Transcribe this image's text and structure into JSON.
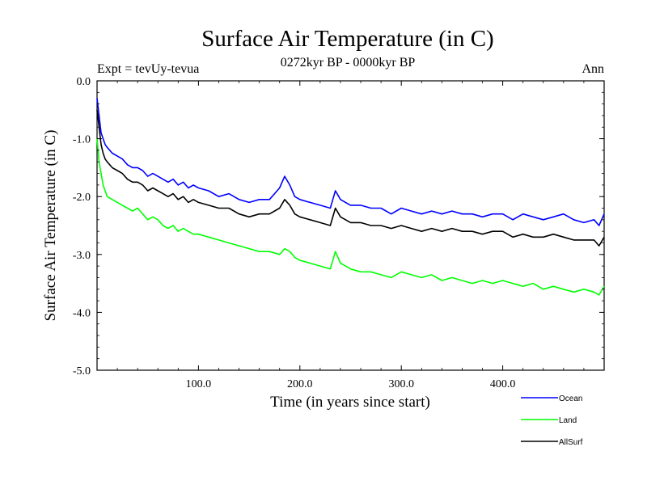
{
  "chart_data": {
    "type": "line",
    "title": "Surface Air Temperature (in C)",
    "subtitle": "0272kyr BP - 0000kyr BP",
    "left_label": "Expt = tevUy-tevua",
    "right_label": "Ann",
    "xlabel": "Time (in years since start)",
    "ylabel": "Surface Air Temperature (in C)",
    "xlim": [
      0,
      500
    ],
    "ylim": [
      -5.0,
      0.0
    ],
    "xticks": [
      100,
      200,
      300,
      400
    ],
    "xtick_labels": [
      "100.0",
      "200.0",
      "300.0",
      "400.0"
    ],
    "yticks": [
      0.0,
      -1.0,
      -2.0,
      -3.0,
      -4.0,
      -5.0
    ],
    "ytick_labels": [
      "0.0",
      "-1.0",
      "-2.0",
      "-3.0",
      "-4.0",
      "-5.0"
    ],
    "grid": false,
    "legend_position": "bottom-right, below plot",
    "series": [
      {
        "name": "Ocean",
        "color": "#0000ff",
        "x": [
          0,
          2,
          4,
          6,
          8,
          10,
          15,
          20,
          25,
          30,
          35,
          40,
          45,
          50,
          55,
          60,
          65,
          70,
          75,
          80,
          85,
          90,
          95,
          100,
          110,
          120,
          130,
          140,
          150,
          160,
          170,
          180,
          185,
          190,
          195,
          200,
          210,
          220,
          230,
          235,
          240,
          245,
          250,
          260,
          270,
          280,
          290,
          300,
          310,
          320,
          330,
          340,
          350,
          360,
          370,
          380,
          390,
          400,
          410,
          420,
          430,
          440,
          450,
          460,
          470,
          480,
          490,
          495,
          500
        ],
        "y": [
          -0.3,
          -0.6,
          -0.9,
          -1.0,
          -1.1,
          -1.15,
          -1.25,
          -1.3,
          -1.35,
          -1.45,
          -1.5,
          -1.5,
          -1.55,
          -1.65,
          -1.6,
          -1.65,
          -1.7,
          -1.75,
          -1.7,
          -1.8,
          -1.75,
          -1.85,
          -1.8,
          -1.85,
          -1.9,
          -2.0,
          -1.95,
          -2.05,
          -2.1,
          -2.05,
          -2.05,
          -1.85,
          -1.65,
          -1.8,
          -2.0,
          -2.05,
          -2.1,
          -2.15,
          -2.2,
          -1.9,
          -2.05,
          -2.1,
          -2.15,
          -2.15,
          -2.2,
          -2.2,
          -2.3,
          -2.2,
          -2.25,
          -2.3,
          -2.25,
          -2.3,
          -2.25,
          -2.3,
          -2.3,
          -2.35,
          -2.3,
          -2.3,
          -2.4,
          -2.3,
          -2.35,
          -2.4,
          -2.35,
          -2.3,
          -2.4,
          -2.45,
          -2.4,
          -2.5,
          -2.3
        ]
      },
      {
        "name": "Land",
        "color": "#00ff00",
        "x": [
          0,
          2,
          4,
          6,
          8,
          10,
          15,
          20,
          25,
          30,
          35,
          40,
          45,
          50,
          55,
          60,
          65,
          70,
          75,
          80,
          85,
          90,
          95,
          100,
          110,
          120,
          130,
          140,
          150,
          160,
          170,
          180,
          185,
          190,
          195,
          200,
          210,
          220,
          230,
          235,
          240,
          245,
          250,
          260,
          270,
          280,
          290,
          300,
          310,
          320,
          330,
          340,
          350,
          360,
          370,
          380,
          390,
          400,
          410,
          420,
          430,
          440,
          450,
          460,
          470,
          480,
          490,
          495,
          500
        ],
        "y": [
          -1.0,
          -1.4,
          -1.6,
          -1.8,
          -1.9,
          -2.0,
          -2.05,
          -2.1,
          -2.15,
          -2.2,
          -2.25,
          -2.2,
          -2.3,
          -2.4,
          -2.35,
          -2.4,
          -2.5,
          -2.55,
          -2.5,
          -2.6,
          -2.55,
          -2.6,
          -2.65,
          -2.65,
          -2.7,
          -2.75,
          -2.8,
          -2.85,
          -2.9,
          -2.95,
          -2.95,
          -3.0,
          -2.9,
          -2.95,
          -3.05,
          -3.1,
          -3.15,
          -3.2,
          -3.25,
          -2.95,
          -3.15,
          -3.2,
          -3.25,
          -3.3,
          -3.3,
          -3.35,
          -3.4,
          -3.3,
          -3.35,
          -3.4,
          -3.35,
          -3.45,
          -3.4,
          -3.45,
          -3.5,
          -3.45,
          -3.5,
          -3.45,
          -3.5,
          -3.55,
          -3.5,
          -3.6,
          -3.55,
          -3.6,
          -3.65,
          -3.6,
          -3.65,
          -3.7,
          -3.55
        ]
      },
      {
        "name": "AllSurf",
        "color": "#000000",
        "x": [
          0,
          2,
          4,
          6,
          8,
          10,
          15,
          20,
          25,
          30,
          35,
          40,
          45,
          50,
          55,
          60,
          65,
          70,
          75,
          80,
          85,
          90,
          95,
          100,
          110,
          120,
          130,
          140,
          150,
          160,
          170,
          180,
          185,
          190,
          195,
          200,
          210,
          220,
          230,
          235,
          240,
          245,
          250,
          260,
          270,
          280,
          290,
          300,
          310,
          320,
          330,
          340,
          350,
          360,
          370,
          380,
          390,
          400,
          410,
          420,
          430,
          440,
          450,
          460,
          470,
          480,
          490,
          495,
          500
        ],
        "y": [
          -0.5,
          -0.8,
          -1.1,
          -1.25,
          -1.35,
          -1.4,
          -1.5,
          -1.55,
          -1.6,
          -1.7,
          -1.75,
          -1.75,
          -1.8,
          -1.9,
          -1.85,
          -1.9,
          -1.95,
          -2.0,
          -1.95,
          -2.05,
          -2.0,
          -2.1,
          -2.05,
          -2.1,
          -2.15,
          -2.2,
          -2.2,
          -2.3,
          -2.35,
          -2.3,
          -2.3,
          -2.2,
          -2.05,
          -2.15,
          -2.3,
          -2.35,
          -2.4,
          -2.45,
          -2.5,
          -2.2,
          -2.35,
          -2.4,
          -2.45,
          -2.45,
          -2.5,
          -2.5,
          -2.55,
          -2.5,
          -2.55,
          -2.6,
          -2.55,
          -2.6,
          -2.55,
          -2.6,
          -2.6,
          -2.65,
          -2.6,
          -2.6,
          -2.7,
          -2.65,
          -2.7,
          -2.7,
          -2.65,
          -2.7,
          -2.75,
          -2.75,
          -2.75,
          -2.85,
          -2.7
        ]
      }
    ]
  }
}
